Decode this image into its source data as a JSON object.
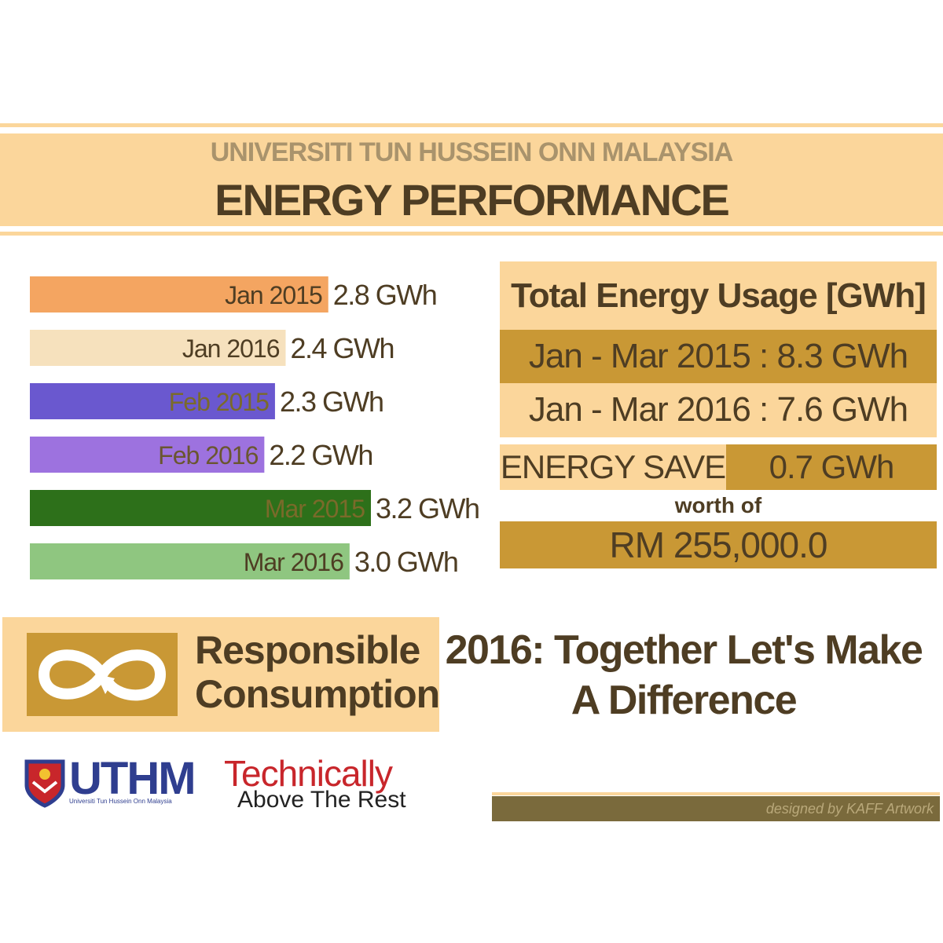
{
  "header": {
    "university": "UNIVERSITI TUN HUSSEIN ONN MALAYSIA",
    "title": "ENERGY PERFORMANCE"
  },
  "chart_data": {
    "type": "bar",
    "orientation": "horizontal",
    "categories": [
      "Jan 2015",
      "Jan 2016",
      "Feb 2015",
      "Feb 2016",
      "Mar 2015",
      "Mar 2016"
    ],
    "values": [
      2.8,
      2.4,
      2.3,
      2.2,
      3.2,
      3.0
    ],
    "value_labels": [
      "2.8 GWh",
      "2.4 GWh",
      "2.3 GWh",
      "2.2 GWh",
      "3.2 GWh",
      "3.0 GWh"
    ],
    "unit": "GWh",
    "colors": [
      "#f4a561",
      "#f6e1bd",
      "#6a58cf",
      "#9d72df",
      "#2d701a",
      "#8fc680"
    ],
    "label_colors": [
      "#4e3d23",
      "#4e3d23",
      "#7a6a2a",
      "#6a5630",
      "#7a6a2a",
      "#4e3d23"
    ],
    "xlim": [
      0,
      3.2
    ],
    "grid": false,
    "legend": "none"
  },
  "summary": {
    "title": "Total Energy Usage [GWh]",
    "rows": [
      {
        "period": "Jan - Mar 2015",
        "value": ": 8.3 GWh"
      },
      {
        "period": "Jan - Mar 2016",
        "value": ": 7.6 GWh"
      }
    ],
    "save_label": "ENERGY SAVE",
    "save_value": "0.7 GWh",
    "worth_label": "worth of",
    "worth_value": "RM 255,000.0"
  },
  "campaign": {
    "line1": "Responsible",
    "line2": "Consumption",
    "icon": "infinity-recycle-icon"
  },
  "slogan": {
    "line1": "2016: Together Let's Make",
    "line2": "A Difference"
  },
  "logos": {
    "uthm_word": "UTHM",
    "uthm_sub": "Universiti Tun Hussein Onn Malaysia",
    "tagline_1": "Technically",
    "tagline_2": "Above The Rest"
  },
  "footer": {
    "credit": "designed by KAFF Artwork"
  },
  "colors": {
    "accent_light": "#fbd69b",
    "accent_dark": "#c99835",
    "text_dark": "#4e3d23"
  }
}
